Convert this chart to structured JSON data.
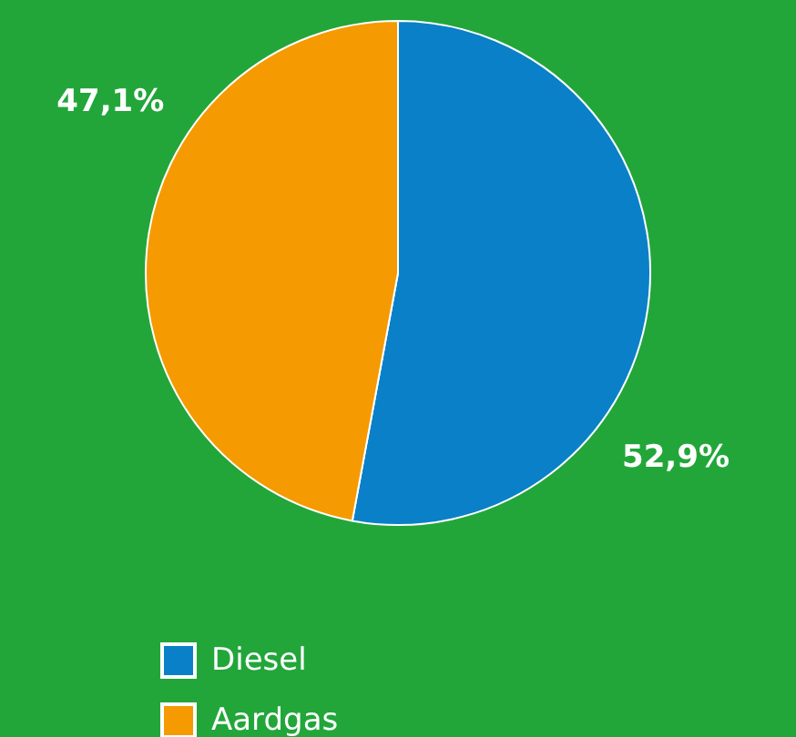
{
  "chart_data": {
    "type": "pie",
    "categories": [
      "Diesel",
      "Aardgas"
    ],
    "values": [
      52.9,
      47.1
    ],
    "colors": [
      "#0a80c8",
      "#f59a00"
    ],
    "value_labels": [
      "52,9%",
      "47,1%"
    ],
    "legend": "bottom"
  }
}
